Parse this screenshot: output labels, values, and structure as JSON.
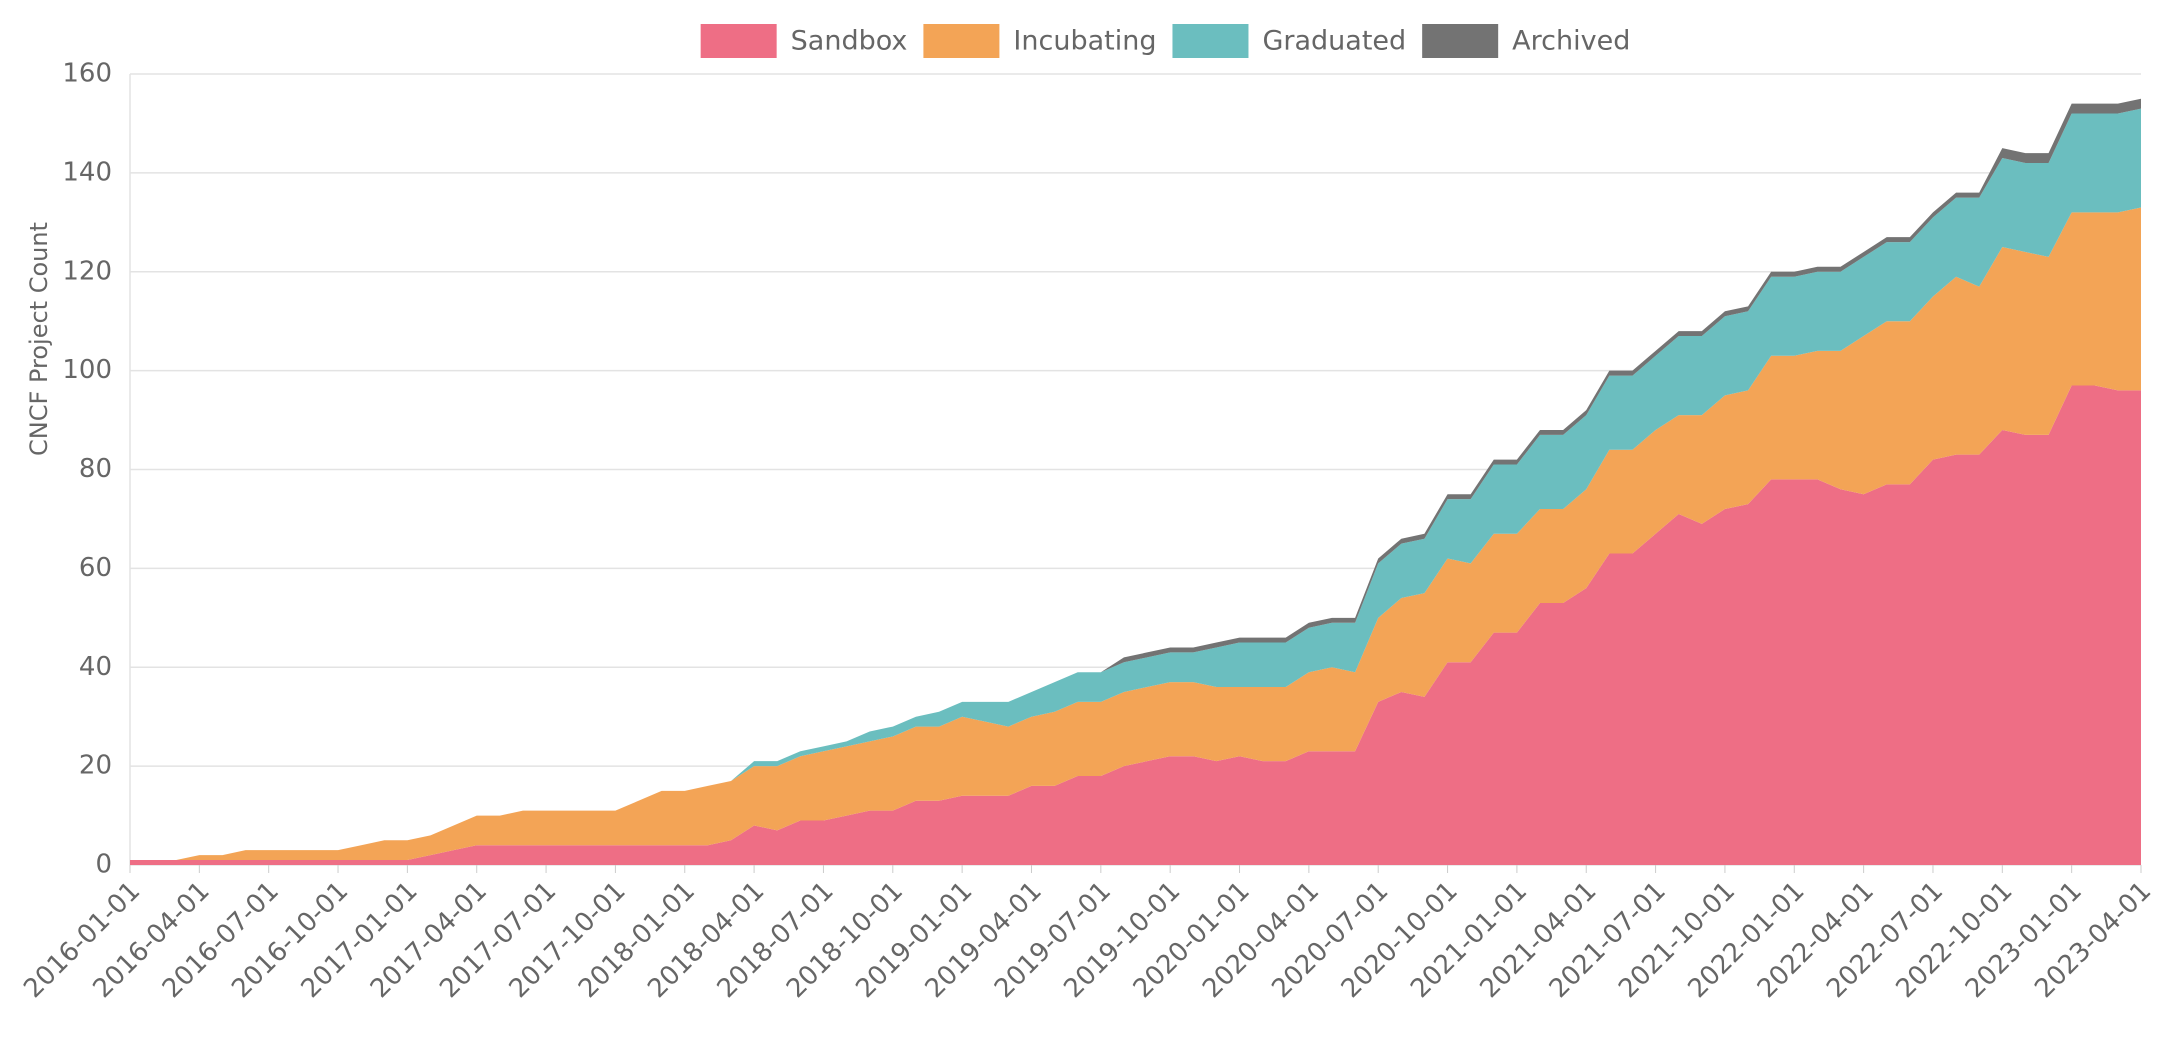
{
  "chart_data": {
    "type": "stacked_area",
    "y_label": "CNCF Project Count",
    "x": [
      "2016-01-01",
      "2016-02-01",
      "2016-03-01",
      "2016-04-01",
      "2016-05-01",
      "2016-06-01",
      "2016-07-01",
      "2016-08-01",
      "2016-09-01",
      "2016-10-01",
      "2016-11-01",
      "2016-12-01",
      "2017-01-01",
      "2017-02-01",
      "2017-03-01",
      "2017-04-01",
      "2017-05-01",
      "2017-06-01",
      "2017-07-01",
      "2017-08-01",
      "2017-09-01",
      "2017-10-01",
      "2017-11-01",
      "2017-12-01",
      "2018-01-01",
      "2018-02-01",
      "2018-03-01",
      "2018-04-01",
      "2018-05-01",
      "2018-06-01",
      "2018-07-01",
      "2018-08-01",
      "2018-09-01",
      "2018-10-01",
      "2018-11-01",
      "2018-12-01",
      "2019-01-01",
      "2019-02-01",
      "2019-03-01",
      "2019-04-01",
      "2019-05-01",
      "2019-06-01",
      "2019-07-01",
      "2019-08-01",
      "2019-09-01",
      "2019-10-01",
      "2019-11-01",
      "2019-12-01",
      "2020-01-01",
      "2020-02-01",
      "2020-03-01",
      "2020-04-01",
      "2020-05-01",
      "2020-06-01",
      "2020-07-01",
      "2020-08-01",
      "2020-09-01",
      "2020-10-01",
      "2020-11-01",
      "2020-12-01",
      "2021-01-01",
      "2021-02-01",
      "2021-03-01",
      "2021-04-01",
      "2021-05-01",
      "2021-06-01",
      "2021-07-01",
      "2021-08-01",
      "2021-09-01",
      "2021-10-01",
      "2021-11-01",
      "2021-12-01",
      "2022-01-01",
      "2022-02-01",
      "2022-03-01",
      "2022-04-01",
      "2022-05-01",
      "2022-06-01",
      "2022-07-01",
      "2022-08-01",
      "2022-09-01",
      "2022-10-01",
      "2022-11-01",
      "2022-12-01",
      "2023-01-01",
      "2023-02-01",
      "2023-03-01",
      "2023-04-01"
    ],
    "xticks": [
      "2016-01-01",
      "2016-04-01",
      "2016-07-01",
      "2016-10-01",
      "2017-01-01",
      "2017-04-01",
      "2017-07-01",
      "2017-10-01",
      "2018-01-01",
      "2018-04-01",
      "2018-07-01",
      "2018-10-01",
      "2019-01-01",
      "2019-04-01",
      "2019-07-01",
      "2019-10-01",
      "2020-01-01",
      "2020-04-01",
      "2020-07-01",
      "2020-10-01",
      "2021-01-01",
      "2021-04-01",
      "2021-07-01",
      "2021-10-01",
      "2022-01-01",
      "2022-04-01",
      "2022-07-01",
      "2022-10-01",
      "2023-01-01",
      "2023-04-01"
    ],
    "ylim": [
      0,
      160
    ],
    "yticks": [
      0,
      20,
      40,
      60,
      80,
      100,
      120,
      140,
      160
    ],
    "grid": true,
    "legend": "top",
    "series": [
      {
        "name": "Sandbox",
        "color": "#ee6e85",
        "values": [
          1,
          1,
          1,
          1,
          1,
          1,
          1,
          1,
          1,
          1,
          1,
          1,
          1,
          2,
          3,
          4,
          4,
          4,
          4,
          4,
          4,
          4,
          4,
          4,
          4,
          4,
          5,
          8,
          7,
          9,
          9,
          10,
          11,
          11,
          13,
          13,
          14,
          14,
          14,
          16,
          16,
          18,
          18,
          20,
          21,
          22,
          22,
          21,
          22,
          21,
          21,
          23,
          23,
          23,
          33,
          35,
          34,
          41,
          41,
          47,
          47,
          53,
          53,
          56,
          63,
          63,
          67,
          71,
          69,
          72,
          73,
          78,
          78,
          78,
          76,
          75,
          77,
          77,
          82,
          83,
          83,
          88,
          87,
          87,
          97,
          97,
          96,
          96
        ]
      },
      {
        "name": "Incubating",
        "color": "#f3a456",
        "values": [
          0,
          0,
          0,
          1,
          1,
          2,
          2,
          2,
          2,
          2,
          3,
          4,
          4,
          4,
          5,
          6,
          6,
          7,
          7,
          7,
          7,
          7,
          9,
          11,
          11,
          12,
          12,
          12,
          13,
          13,
          14,
          14,
          14,
          15,
          15,
          15,
          16,
          15,
          14,
          14,
          15,
          15,
          15,
          15,
          15,
          15,
          15,
          15,
          14,
          15,
          15,
          16,
          17,
          16,
          17,
          19,
          21,
          21,
          20,
          20,
          20,
          19,
          19,
          20,
          21,
          21,
          21,
          20,
          22,
          23,
          23,
          25,
          25,
          26,
          28,
          32,
          33,
          33,
          33,
          36,
          34,
          37,
          37,
          36,
          35,
          35,
          36,
          37
        ]
      },
      {
        "name": "Graduated",
        "color": "#6bbebf",
        "values": [
          0,
          0,
          0,
          0,
          0,
          0,
          0,
          0,
          0,
          0,
          0,
          0,
          0,
          0,
          0,
          0,
          0,
          0,
          0,
          0,
          0,
          0,
          0,
          0,
          0,
          0,
          0,
          1,
          1,
          1,
          1,
          1,
          2,
          2,
          2,
          3,
          3,
          4,
          5,
          5,
          6,
          6,
          6,
          6,
          6,
          6,
          6,
          8,
          9,
          9,
          9,
          9,
          9,
          10,
          11,
          11,
          11,
          12,
          13,
          14,
          14,
          15,
          15,
          15,
          15,
          15,
          15,
          16,
          16,
          16,
          16,
          16,
          16,
          16,
          16,
          16,
          16,
          16,
          16,
          16,
          18,
          18,
          18,
          19,
          20,
          20,
          20,
          20
        ]
      },
      {
        "name": "Archived",
        "color": "#737373",
        "values": [
          0,
          0,
          0,
          0,
          0,
          0,
          0,
          0,
          0,
          0,
          0,
          0,
          0,
          0,
          0,
          0,
          0,
          0,
          0,
          0,
          0,
          0,
          0,
          0,
          0,
          0,
          0,
          0,
          0,
          0,
          0,
          0,
          0,
          0,
          0,
          0,
          0,
          0,
          0,
          0,
          0,
          0,
          0,
          1,
          1,
          1,
          1,
          1,
          1,
          1,
          1,
          1,
          1,
          1,
          1,
          1,
          1,
          1,
          1,
          1,
          1,
          1,
          1,
          1,
          1,
          1,
          1,
          1,
          1,
          1,
          1,
          1,
          1,
          1,
          1,
          1,
          1,
          1,
          1,
          1,
          1,
          2,
          2,
          2,
          2,
          2,
          2,
          2
        ]
      }
    ]
  }
}
